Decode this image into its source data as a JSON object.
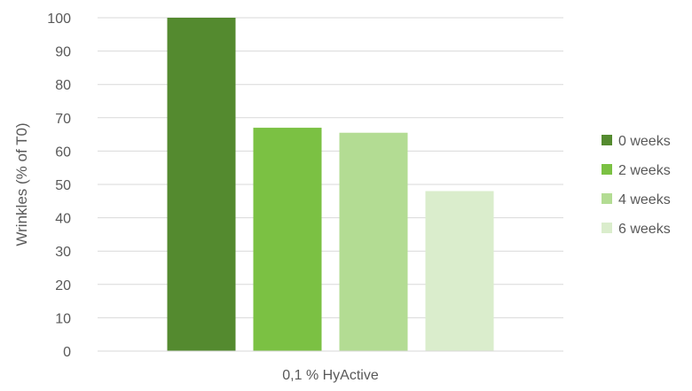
{
  "chart_data": {
    "type": "bar",
    "categories": [
      "0,1 % HyActive"
    ],
    "series": [
      {
        "name": "0 weeks",
        "values": [
          100
        ],
        "color": "#548a2f"
      },
      {
        "name": "2 weeks",
        "values": [
          67
        ],
        "color": "#7bc143"
      },
      {
        "name": "4 weeks",
        "values": [
          65.5
        ],
        "color": "#b3dc93"
      },
      {
        "name": "6 weeks",
        "values": [
          48
        ],
        "color": "#daedcc"
      }
    ],
    "title": "",
    "xlabel": "",
    "ylabel": "Wrinkles (% of T0)",
    "ylim": [
      0,
      100
    ],
    "yticks": [
      0,
      10,
      20,
      30,
      40,
      50,
      60,
      70,
      80,
      90,
      100
    ],
    "grid": true,
    "legend": "right"
  }
}
